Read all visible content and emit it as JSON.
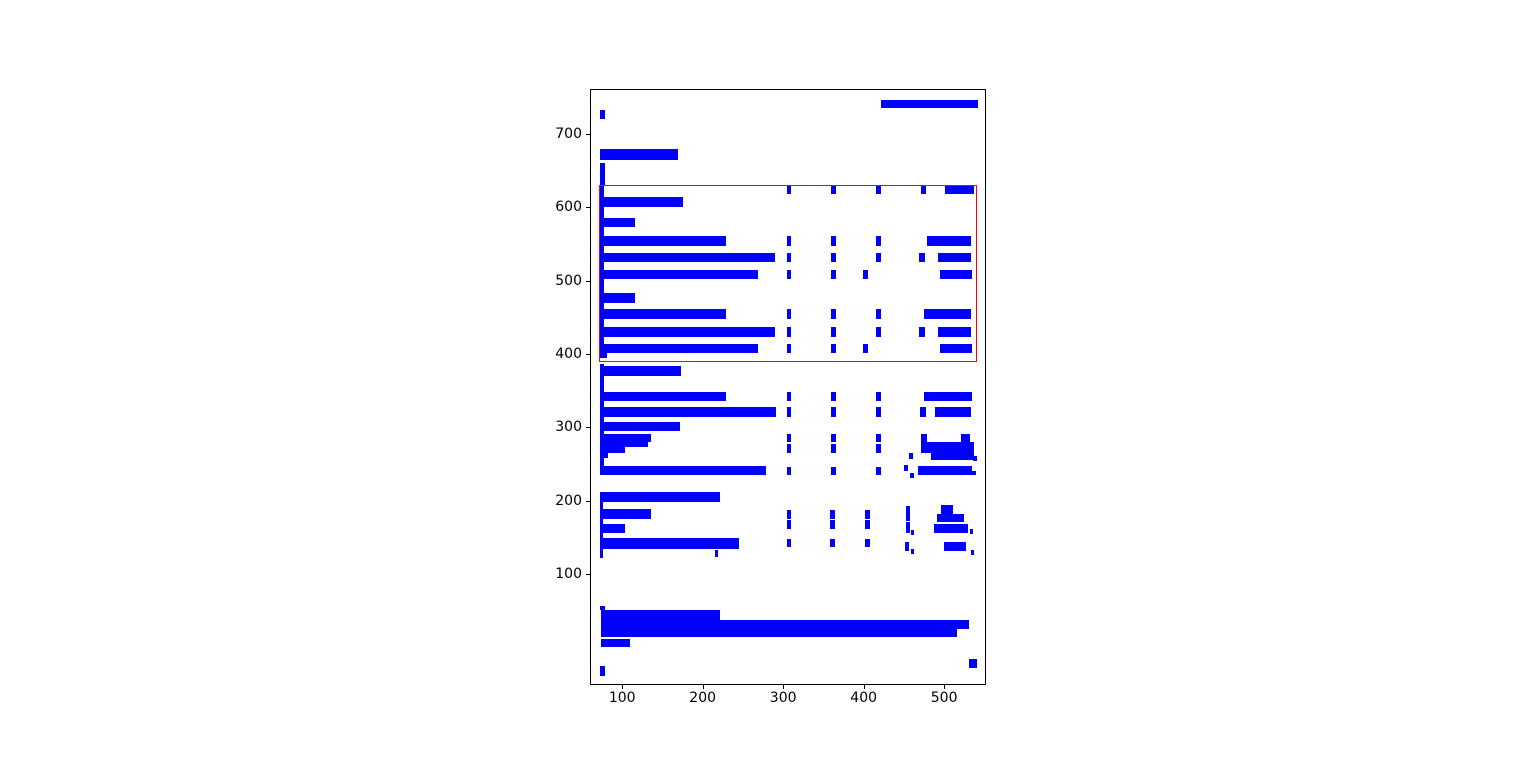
{
  "figure": {
    "background_color": "#ffffff",
    "plot_border_color": "#000000",
    "tick_label_color": "#000000"
  },
  "chart_data": {
    "type": "bar",
    "subtype": "axis-aligned rectangle boxes (document layout / bounding-box plot, horizontal bars anchored at x=71 plus scattered dash marks and a red highlight region)",
    "title": "",
    "xlabel": "",
    "ylabel": "",
    "grid": false,
    "legend": null,
    "xlim": [
      60,
      552
    ],
    "ylim": [
      -51,
      761
    ],
    "x_ticks": [
      100,
      200,
      300,
      400,
      500
    ],
    "y_ticks": [
      100,
      200,
      300,
      400,
      500,
      600,
      700
    ],
    "box_color": "#0000ff",
    "highlight_color": "#ff0000",
    "highlight_box": [
      69.5,
      390,
      540,
      631.5
    ],
    "boxes": [
      [
        420,
        736,
        541,
        747
      ],
      [
        71,
        722,
        77,
        734
      ],
      [
        71,
        666,
        168,
        680
      ],
      [
        71,
        631,
        77,
        661
      ],
      [
        71,
        396,
        76,
        631
      ],
      [
        303,
        619,
        309,
        632
      ],
      [
        358,
        619,
        364,
        632
      ],
      [
        414,
        619,
        420,
        632
      ],
      [
        470,
        619,
        476,
        632
      ],
      [
        500,
        619,
        536,
        632
      ],
      [
        71,
        601,
        174,
        615
      ],
      [
        71,
        574,
        115,
        586
      ],
      [
        71,
        549,
        228,
        562
      ],
      [
        303,
        549,
        309,
        562
      ],
      [
        358,
        549,
        364,
        562
      ],
      [
        414,
        549,
        420,
        562
      ],
      [
        478,
        549,
        532,
        562
      ],
      [
        71,
        526,
        288,
        539
      ],
      [
        303,
        526,
        309,
        539
      ],
      [
        358,
        526,
        364,
        539
      ],
      [
        414,
        526,
        420,
        539
      ],
      [
        468,
        526,
        475,
        539
      ],
      [
        491,
        526,
        532,
        539
      ],
      [
        71,
        503,
        267,
        516
      ],
      [
        303,
        503,
        309,
        516
      ],
      [
        358,
        503,
        364,
        516
      ],
      [
        398,
        503,
        404,
        516
      ],
      [
        494,
        503,
        533,
        516
      ],
      [
        71,
        471,
        115,
        484
      ],
      [
        71,
        449,
        228,
        462
      ],
      [
        303,
        449,
        309,
        462
      ],
      [
        358,
        449,
        364,
        462
      ],
      [
        414,
        449,
        420,
        462
      ],
      [
        474,
        449,
        532,
        462
      ],
      [
        71,
        425,
        288,
        438
      ],
      [
        303,
        425,
        309,
        438
      ],
      [
        358,
        425,
        364,
        438
      ],
      [
        414,
        425,
        420,
        438
      ],
      [
        468,
        425,
        475,
        438
      ],
      [
        491,
        425,
        532,
        438
      ],
      [
        71,
        402,
        267,
        415
      ],
      [
        303,
        402,
        309,
        415
      ],
      [
        358,
        402,
        364,
        415
      ],
      [
        398,
        402,
        404,
        415
      ],
      [
        494,
        402,
        533,
        415
      ],
      [
        71,
        396,
        80,
        409
      ],
      [
        71,
        371,
        172,
        385
      ],
      [
        71,
        236,
        76,
        388
      ],
      [
        71,
        337,
        228,
        350
      ],
      [
        303,
        337,
        309,
        350
      ],
      [
        358,
        337,
        364,
        350
      ],
      [
        414,
        337,
        420,
        350
      ],
      [
        474,
        337,
        533,
        350
      ],
      [
        71,
        316,
        290,
        329
      ],
      [
        303,
        316,
        309,
        329
      ],
      [
        358,
        316,
        364,
        329
      ],
      [
        414,
        316,
        420,
        329
      ],
      [
        469,
        316,
        476,
        329
      ],
      [
        488,
        316,
        532,
        329
      ],
      [
        71,
        296,
        171,
        309
      ],
      [
        71,
        282,
        134,
        293
      ],
      [
        71,
        274,
        131,
        282
      ],
      [
        71,
        266,
        102,
        274
      ],
      [
        71,
        259,
        81,
        266
      ],
      [
        303,
        281,
        309,
        293
      ],
      [
        303,
        267,
        309,
        279
      ],
      [
        358,
        281,
        364,
        293
      ],
      [
        358,
        267,
        364,
        279
      ],
      [
        414,
        281,
        420,
        293
      ],
      [
        414,
        267,
        420,
        279
      ],
      [
        470,
        281,
        478,
        292
      ],
      [
        520,
        279,
        531,
        292
      ],
      [
        470,
        267,
        536,
        281
      ],
      [
        483,
        257,
        536,
        267
      ],
      [
        455,
        258,
        460,
        266
      ],
      [
        535,
        256,
        539,
        263
      ],
      [
        71,
        236,
        277,
        249
      ],
      [
        303,
        237,
        309,
        248
      ],
      [
        358,
        237,
        364,
        248
      ],
      [
        414,
        237,
        420,
        248
      ],
      [
        449,
        242,
        454,
        250
      ],
      [
        456,
        232,
        461,
        239
      ],
      [
        466,
        236,
        533,
        249
      ],
      [
        533,
        236,
        538,
        242
      ],
      [
        71,
        199,
        220,
        213
      ],
      [
        71,
        176,
        134,
        190
      ],
      [
        71,
        158,
        102,
        170
      ],
      [
        71,
        123,
        75,
        213
      ],
      [
        71,
        136,
        244,
        150
      ],
      [
        214,
        125,
        218,
        134
      ],
      [
        303,
        176,
        309,
        189
      ],
      [
        303,
        163,
        309,
        175
      ],
      [
        303,
        138,
        309,
        149
      ],
      [
        357,
        176,
        363,
        189
      ],
      [
        357,
        163,
        363,
        175
      ],
      [
        357,
        138,
        363,
        149
      ],
      [
        401,
        176,
        407,
        189
      ],
      [
        401,
        163,
        407,
        175
      ],
      [
        401,
        138,
        407,
        149
      ],
      [
        451,
        174,
        456,
        194
      ],
      [
        451,
        158,
        456,
        172
      ],
      [
        450,
        133,
        455,
        145
      ],
      [
        457,
        155,
        461,
        161
      ],
      [
        457,
        129,
        461,
        136
      ],
      [
        495,
        183,
        510,
        195
      ],
      [
        490,
        172,
        523,
        183
      ],
      [
        486,
        157,
        528,
        170
      ],
      [
        531,
        156,
        535,
        163
      ],
      [
        499,
        133,
        526,
        145
      ],
      [
        532,
        128,
        536,
        134
      ],
      [
        71,
        52,
        77,
        58
      ],
      [
        72,
        16,
        220,
        52
      ],
      [
        220,
        16,
        515,
        39
      ],
      [
        515,
        26,
        530,
        39
      ],
      [
        72,
        2,
        109,
        13
      ],
      [
        530,
        -26,
        539,
        -14
      ],
      [
        71,
        -37,
        77,
        -24
      ]
    ]
  }
}
